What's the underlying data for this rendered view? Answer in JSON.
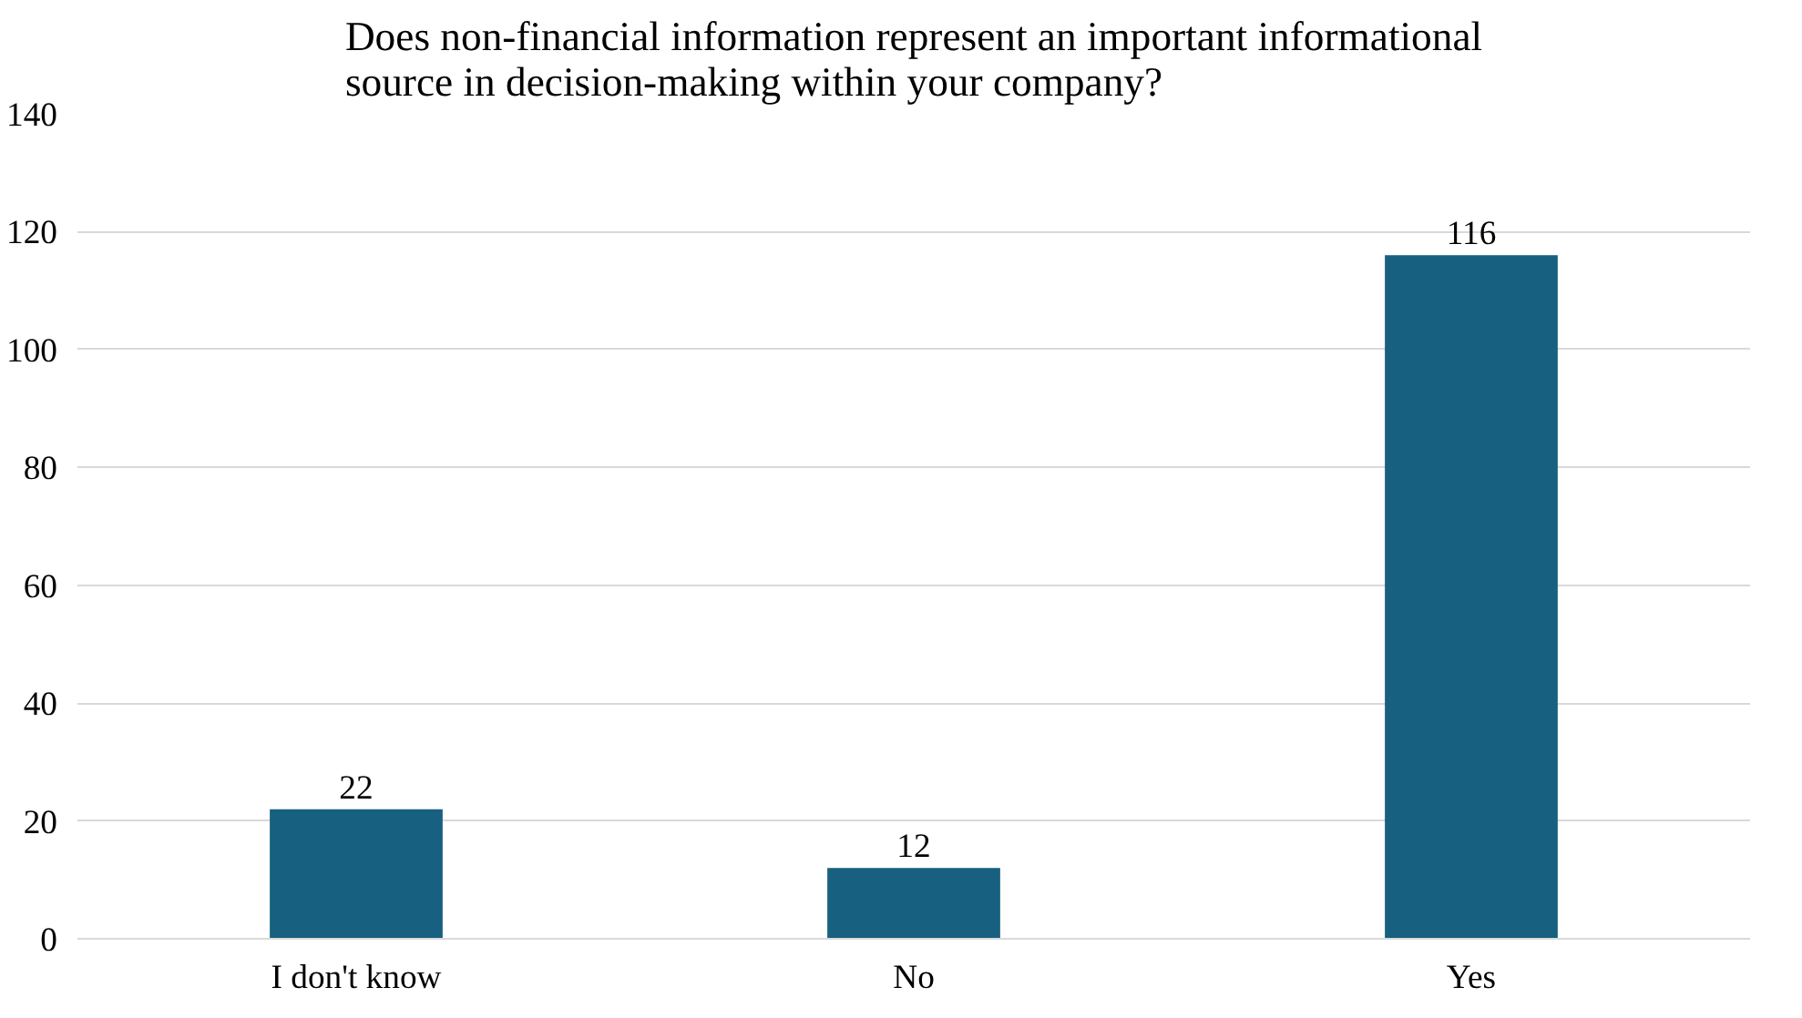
{
  "chart_data": {
    "type": "bar",
    "title": "Does non-financial information represent an important informational source in decision-making within your company?",
    "categories": [
      "I don't know",
      "No",
      "Yes"
    ],
    "values": [
      22,
      12,
      116
    ],
    "color": "#17607f",
    "ylim": [
      0,
      140
    ],
    "yticks": [
      0,
      20,
      40,
      60,
      80,
      100,
      120,
      140
    ],
    "grid": "y",
    "data_labels": true
  }
}
